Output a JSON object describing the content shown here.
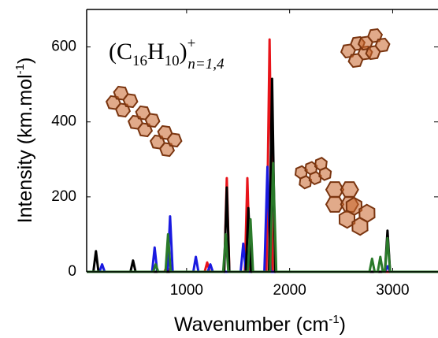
{
  "chart_data": {
    "type": "line",
    "annotation": [
      "(C",
      "16",
      "H",
      "10",
      ")",
      "+",
      "n=1,4"
    ],
    "y_label": [
      "Intensity (km.mol",
      "-1",
      ")"
    ],
    "x_label": [
      "Wavenumber (cm",
      "-1",
      ")"
    ],
    "xlim": [
      30,
      3440
    ],
    "ylim": [
      0,
      700
    ],
    "xticks": [
      1000,
      2000,
      3000
    ],
    "yticks": [
      0,
      200,
      400,
      600
    ],
    "series": [
      {
        "color": "#e8141a",
        "x": [
          30,
          785,
          810,
          835,
          1175,
          1200,
          1225,
          1365,
          1390,
          1415,
          1565,
          1590,
          1615,
          1775,
          1805,
          1835,
          3440
        ],
        "values": [
          0,
          0,
          15,
          0,
          0,
          25,
          0,
          0,
          250,
          0,
          0,
          250,
          0,
          0,
          620,
          0,
          0
        ]
      },
      {
        "color": "#1a1ae0",
        "x": [
          30,
          155,
          180,
          205,
          665,
          690,
          715,
          815,
          840,
          865,
          1065,
          1090,
          1115,
          1205,
          1230,
          1255,
          1525,
          1550,
          1575,
          1755,
          1785,
          1815,
          2925,
          2950,
          2975,
          3440
        ],
        "values": [
          0,
          0,
          20,
          0,
          0,
          65,
          0,
          0,
          148,
          0,
          0,
          40,
          0,
          0,
          20,
          0,
          0,
          75,
          0,
          0,
          280,
          0,
          0,
          15,
          0,
          0
        ]
      },
      {
        "color": "#000000",
        "x": [
          30,
          95,
          120,
          145,
          455,
          480,
          505,
          1365,
          1390,
          1415,
          1575,
          1600,
          1625,
          1800,
          1830,
          1860,
          2925,
          2950,
          2975,
          3440
        ],
        "values": [
          0,
          0,
          55,
          0,
          0,
          30,
          0,
          0,
          225,
          0,
          0,
          170,
          0,
          0,
          515,
          0,
          0,
          110,
          0,
          0
        ]
      },
      {
        "color": "#2a7a2a",
        "x": [
          30,
          675,
          700,
          725,
          795,
          820,
          845,
          1355,
          1380,
          1405,
          1595,
          1620,
          1645,
          1810,
          1840,
          1870,
          2775,
          2800,
          2825,
          2855,
          2880,
          2905,
          2925,
          2950,
          2975,
          3440
        ],
        "values": [
          0,
          0,
          20,
          0,
          0,
          100,
          0,
          0,
          100,
          0,
          0,
          140,
          0,
          0,
          290,
          0,
          0,
          35,
          0,
          0,
          40,
          0,
          0,
          90,
          0,
          0
        ]
      }
    ]
  }
}
